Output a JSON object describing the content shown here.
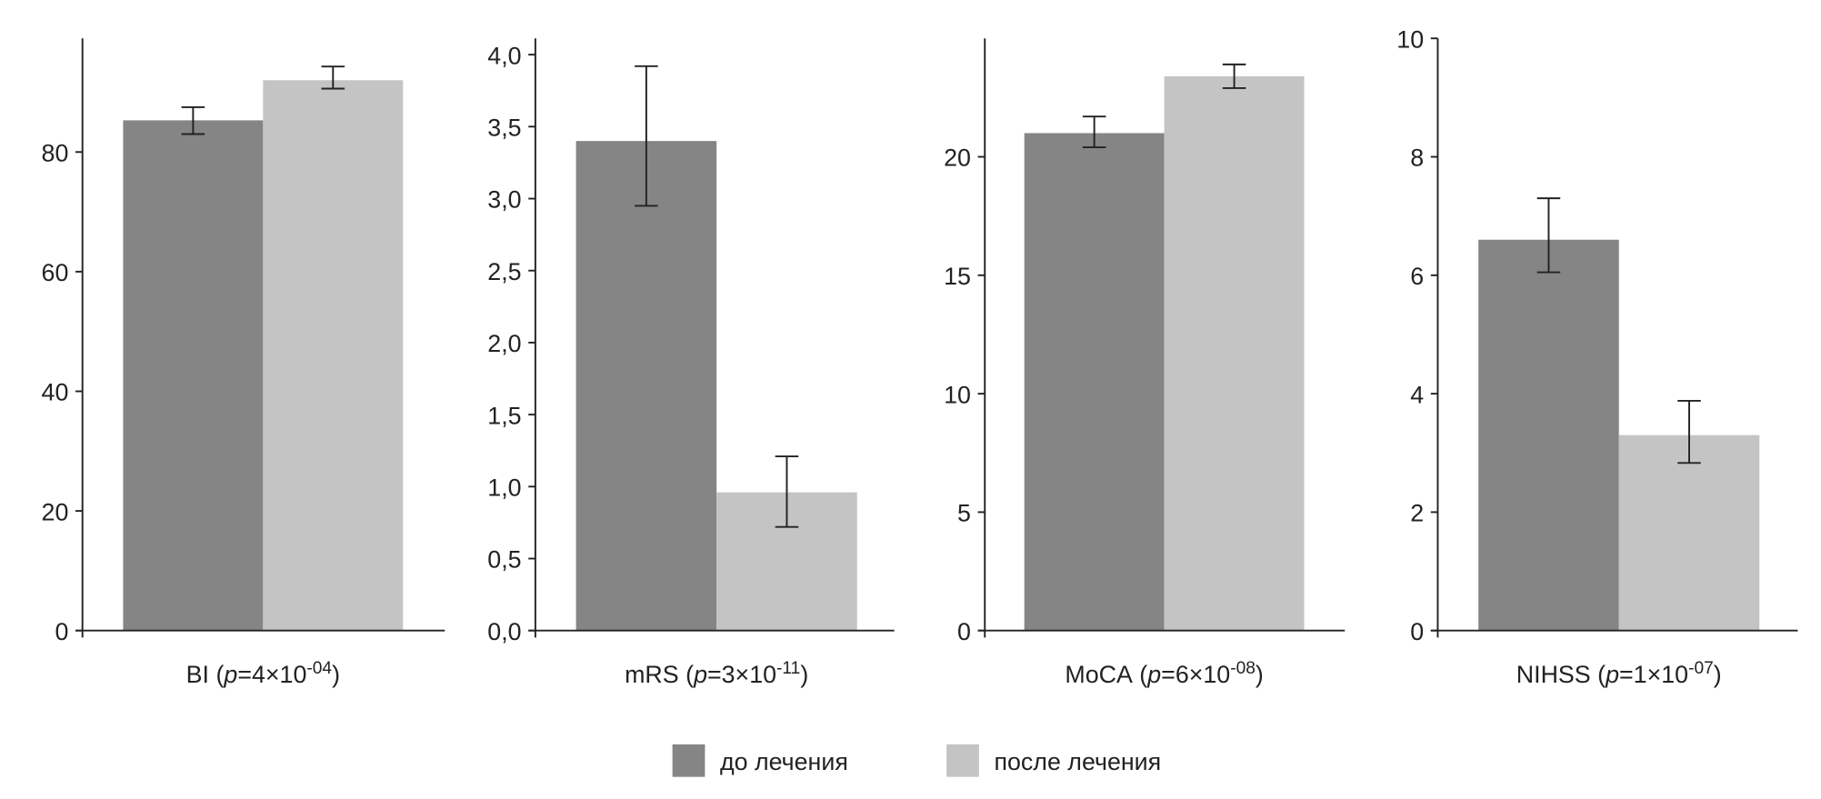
{
  "chart_data": [
    {
      "type": "bar",
      "xlabel": {
        "name": "BI",
        "p_prefix": "p",
        "p_mant": "=4×10",
        "p_exp": "-04",
        "close": ")"
      },
      "ylim": [
        0,
        99
      ],
      "yticks": [
        0,
        20,
        40,
        60,
        80
      ],
      "ytick_labels": [
        "0",
        "20",
        "40",
        "60",
        "80"
      ],
      "series": [
        {
          "name": "до лечения",
          "value": 85.3,
          "err_low": 83.0,
          "err_high": 87.5
        },
        {
          "name": "после лечения",
          "value": 92.0,
          "err_low": 90.6,
          "err_high": 94.3
        }
      ]
    },
    {
      "type": "bar",
      "xlabel": {
        "name": "mRS",
        "p_prefix": "p",
        "p_mant": "=3×10",
        "p_exp": "-11",
        "close": ")"
      },
      "ylim": [
        0,
        4.0
      ],
      "yticks": [
        0,
        0.5,
        1,
        1.5,
        2,
        2.5,
        3,
        3.5,
        4
      ],
      "ytick_labels": [
        "0,0",
        "0,5",
        "1,0",
        "1,5",
        "2,0",
        "2,5",
        "3,0",
        "3,5",
        "4,0"
      ],
      "series": [
        {
          "name": "до лечения",
          "value": 3.4,
          "err_low": 2.95,
          "err_high": 3.92
        },
        {
          "name": "после лечения",
          "value": 0.96,
          "err_low": 0.72,
          "err_high": 1.21
        }
      ]
    },
    {
      "type": "bar",
      "xlabel": {
        "name": "MoCA",
        "p_prefix": "p",
        "p_mant": "=6×10",
        "p_exp": "-08",
        "close": ")"
      },
      "ylim": [
        0,
        25
      ],
      "yticks": [
        0,
        5,
        10,
        15,
        20
      ],
      "ytick_labels": [
        "0",
        "5",
        "10",
        "15",
        "20"
      ],
      "series": [
        {
          "name": "до лечения",
          "value": 21.0,
          "err_low": 20.4,
          "err_high": 21.7
        },
        {
          "name": "после лечения",
          "value": 23.4,
          "err_low": 22.9,
          "err_high": 23.9
        }
      ]
    },
    {
      "type": "bar",
      "xlabel": {
        "name": "NIHSS",
        "p_prefix": "p",
        "p_mant": "=1×10",
        "p_exp": "-07",
        "close": ")"
      },
      "ylim": [
        0,
        10
      ],
      "yticks": [
        0,
        2,
        4,
        6,
        8,
        10
      ],
      "ytick_labels": [
        "0",
        "2",
        "4",
        "6",
        "8",
        "10"
      ],
      "series": [
        {
          "name": "до лечения",
          "value": 6.6,
          "err_low": 6.05,
          "err_high": 7.3
        },
        {
          "name": "после лечения",
          "value": 3.3,
          "err_low": 2.83,
          "err_high": 3.88
        }
      ]
    }
  ],
  "legend": {
    "items": [
      {
        "label": "до лечения",
        "color": "#868586"
      },
      {
        "label": "после лечения",
        "color": "#c4c4c4"
      }
    ],
    "placement": "bottom-center"
  },
  "colors": {
    "before": "#868586",
    "after": "#c4c4c4",
    "axis": "#222222"
  }
}
